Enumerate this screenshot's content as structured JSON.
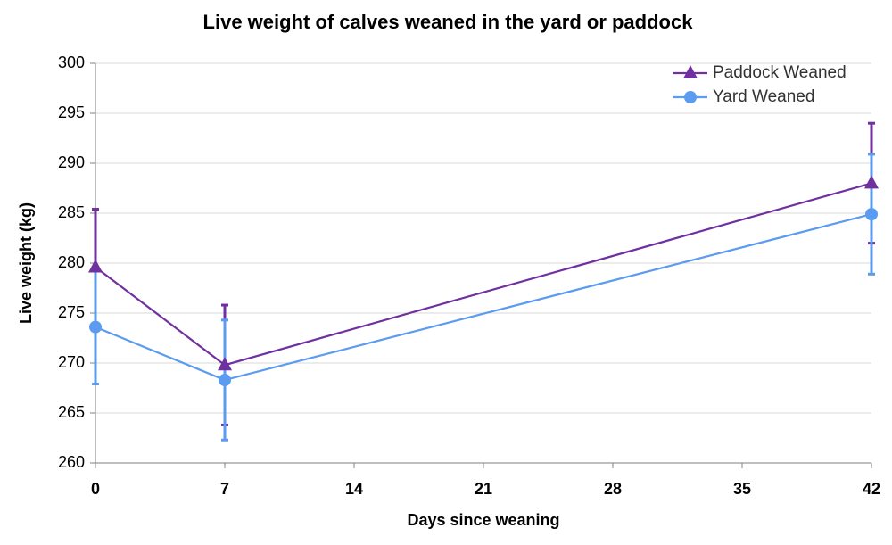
{
  "chart_data": {
    "type": "line",
    "title": "Live weight of calves weaned in the yard or paddock",
    "x_label": "Days since weaning",
    "y_label": "Live weight (kg)",
    "x": [
      0,
      7,
      42
    ],
    "series": [
      {
        "name": "Paddock Weaned",
        "color": "#7030a0",
        "marker": "triangle",
        "values": [
          279.6,
          269.8,
          288.0
        ],
        "errors": [
          5.8,
          6.0,
          6.0
        ]
      },
      {
        "name": "Yard Weaned",
        "color": "#5b9bf0",
        "marker": "circle",
        "values": [
          273.6,
          268.3,
          284.9
        ],
        "errors": [
          5.7,
          6.0,
          6.0
        ]
      }
    ],
    "xlim": [
      0,
      42
    ],
    "xticks": [
      0,
      7,
      14,
      21,
      28,
      35,
      42
    ],
    "ylim": [
      260,
      300
    ],
    "yticks": [
      260,
      265,
      270,
      275,
      280,
      285,
      290,
      295,
      300
    ],
    "grid": true,
    "legend": "top-right"
  }
}
